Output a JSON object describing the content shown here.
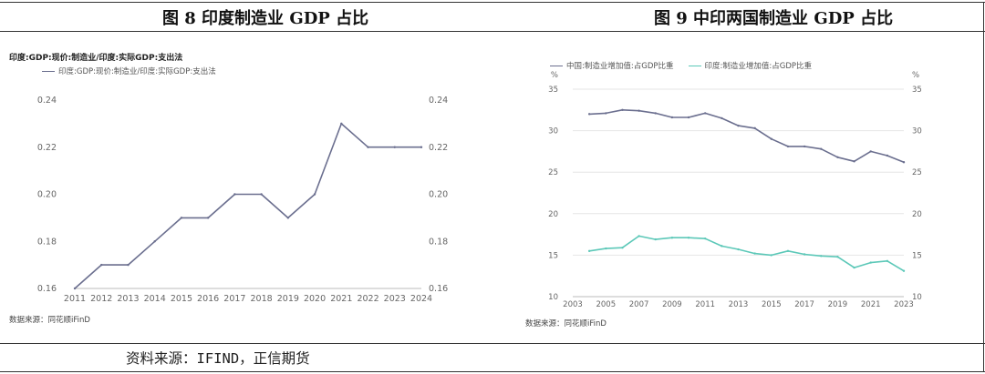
{
  "figure_left": {
    "title": "图 8   印度制造业 GDP 占比",
    "chart_name": "印度:GDP:现价:制造业/印度:实际GDP:支出法",
    "source": "数据来源：同花顺iFinD"
  },
  "figure_right": {
    "title": "图 9   中印两国制造业 GDP 占比",
    "source": "数据来源：同花顺iFinD"
  },
  "footer": "资料来源：IFIND，正信期货",
  "chart_data": [
    {
      "type": "line",
      "title": "印度:GDP:现价:制造业/印度:实际GDP:支出法",
      "x": [
        2011,
        2012,
        2013,
        2014,
        2015,
        2016,
        2017,
        2018,
        2019,
        2020,
        2021,
        2022,
        2023,
        2024
      ],
      "x_tick_labels": [
        "2011",
        "2012",
        "2013",
        "2014",
        "2015",
        "2016",
        "2017",
        "2018",
        "2019",
        "2020",
        "2021",
        "2022",
        "2023",
        "2024"
      ],
      "series": [
        {
          "name": "印度:GDP:现价:制造业/印度:实际GDP:支出法",
          "color": "#6b6f8f",
          "values": [
            0.16,
            0.17,
            0.17,
            0.18,
            0.19,
            0.19,
            0.2,
            0.2,
            0.19,
            0.2,
            0.23,
            0.22,
            0.22,
            0.22
          ]
        }
      ],
      "ylim": [
        0.16,
        0.24
      ],
      "y_ticks": [
        "0.16",
        "0.18",
        "0.20",
        "0.22",
        "0.24"
      ],
      "grid": false,
      "dual_axis": true,
      "legend": "top-left"
    },
    {
      "type": "line",
      "x": [
        2004,
        2005,
        2006,
        2007,
        2008,
        2009,
        2010,
        2011,
        2012,
        2013,
        2014,
        2015,
        2016,
        2017,
        2018,
        2019,
        2020,
        2021,
        2022,
        2023
      ],
      "x_tick_labels": [
        "2003",
        "2005",
        "2007",
        "2009",
        "2011",
        "2013",
        "2015",
        "2017",
        "2019",
        "2021",
        "2023"
      ],
      "xlim": [
        2003,
        2023
      ],
      "y_unit": "%",
      "series": [
        {
          "name": "中国:制造业增加值:占GDP比重",
          "color": "#6b6f8f",
          "values": [
            32.0,
            32.1,
            32.5,
            32.4,
            32.1,
            31.6,
            31.6,
            32.1,
            31.5,
            30.6,
            30.3,
            29.0,
            28.1,
            28.1,
            27.8,
            26.8,
            26.3,
            27.5,
            27.0,
            26.2
          ]
        },
        {
          "name": "印度:制造业增加值:占GDP比重",
          "color": "#5cc8b8",
          "values": [
            15.5,
            15.8,
            15.9,
            17.3,
            16.9,
            17.1,
            17.1,
            17.0,
            16.1,
            15.7,
            15.2,
            15.0,
            15.5,
            15.1,
            14.9,
            14.8,
            13.5,
            14.1,
            14.3,
            13.1
          ]
        }
      ],
      "ylim": [
        10,
        35
      ],
      "y_ticks": [
        "10",
        "15",
        "20",
        "25",
        "30",
        "35"
      ],
      "grid": true,
      "dual_axis": true,
      "legend": "top-left"
    }
  ]
}
